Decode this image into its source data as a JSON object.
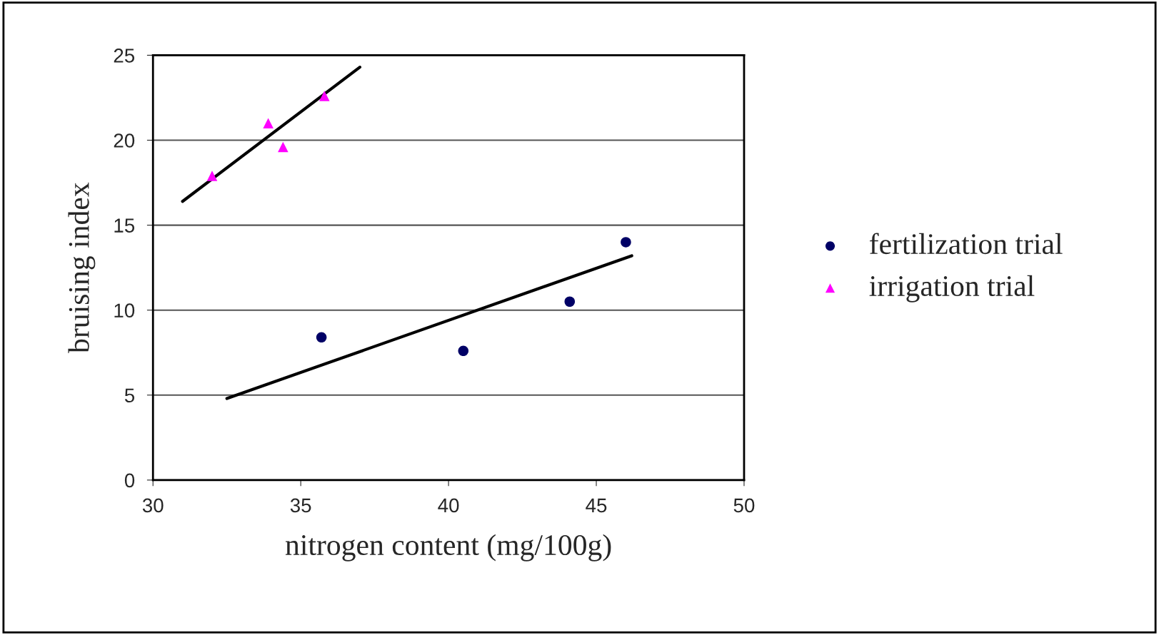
{
  "chart_data": {
    "type": "scatter",
    "xlabel": "nitrogen content (mg/100g)",
    "ylabel": "bruising index",
    "xlim": [
      30,
      50
    ],
    "xticks": [
      30,
      35,
      40,
      45,
      50
    ],
    "ylim": [
      0,
      25
    ],
    "yticks": [
      0,
      5,
      10,
      15,
      20,
      25
    ],
    "grid": "y",
    "legend": "right",
    "series": [
      {
        "name": "fertilization trial",
        "marker": "circle",
        "color": "#000066",
        "x": [
          35.7,
          40.5,
          44.1,
          46.0
        ],
        "values": [
          8.4,
          7.6,
          10.5,
          14.0
        ]
      },
      {
        "name": "irrigation trial",
        "marker": "triangle",
        "color": "#ff00ff",
        "x": [
          32.0,
          33.9,
          34.4,
          35.8
        ],
        "values": [
          17.9,
          21.0,
          19.6,
          22.6
        ]
      },
      {
        "type": "line",
        "color": "#000000",
        "x": [
          32.5,
          46.2
        ],
        "values": [
          4.8,
          13.2
        ]
      },
      {
        "type": "line",
        "color": "#000000",
        "x": [
          31.0,
          37.0
        ],
        "values": [
          16.4,
          24.3
        ]
      }
    ]
  }
}
